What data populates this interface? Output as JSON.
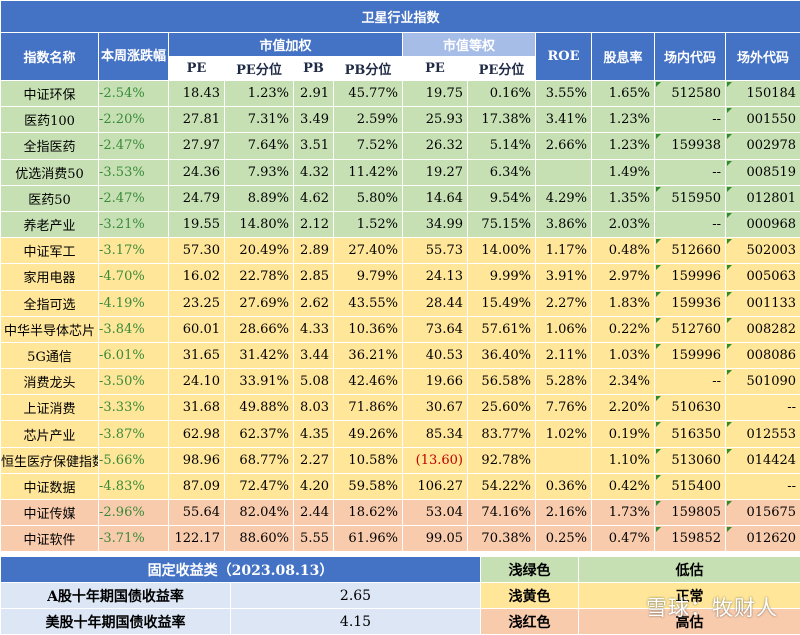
{
  "title": "卫星行业指数",
  "headers": {
    "name": "指数名称",
    "weekly": "本周涨跌幅",
    "cap_weighted": "市值加权",
    "equal_weighted": "市值等权",
    "roe": "ROE",
    "dividend": "股息率",
    "onsite": "场内代码",
    "offsite": "场外代码",
    "pe": "PE",
    "pe_pct": "PE分位",
    "pb": "PB",
    "pb_pct": "PB分位",
    "eq_pe": "PE",
    "eq_pe_pct": "PE分位"
  },
  "rows": [
    {
      "band": "g",
      "name": "中证环保",
      "chg": "-2.54%",
      "pe": "18.43",
      "pe_pct": "1.23%",
      "pb": "2.91",
      "pb_pct": "45.77%",
      "eq_pe": "19.75",
      "eq_pe_pct": "0.16%",
      "roe": "3.55%",
      "div": "1.65%",
      "on": "512580",
      "off": "150184"
    },
    {
      "band": "g",
      "name": "医药100",
      "chg": "-2.20%",
      "pe": "27.81",
      "pe_pct": "7.31%",
      "pb": "3.49",
      "pb_pct": "2.59%",
      "eq_pe": "25.93",
      "eq_pe_pct": "17.38%",
      "roe": "3.41%",
      "div": "1.23%",
      "on": "--",
      "off": "001550"
    },
    {
      "band": "g",
      "name": "全指医药",
      "chg": "-2.47%",
      "pe": "27.97",
      "pe_pct": "7.64%",
      "pb": "3.51",
      "pb_pct": "7.52%",
      "eq_pe": "26.32",
      "eq_pe_pct": "5.14%",
      "roe": "2.66%",
      "div": "1.23%",
      "on": "159938",
      "off": "002978"
    },
    {
      "band": "g",
      "name": "优选消费50",
      "chg": "-3.53%",
      "pe": "24.36",
      "pe_pct": "7.93%",
      "pb": "4.32",
      "pb_pct": "11.42%",
      "eq_pe": "19.27",
      "eq_pe_pct": "6.34%",
      "roe": "",
      "div": "1.49%",
      "on": "--",
      "off": "008519"
    },
    {
      "band": "g",
      "name": "医药50",
      "chg": "-2.47%",
      "pe": "24.79",
      "pe_pct": "8.89%",
      "pb": "4.62",
      "pb_pct": "5.80%",
      "eq_pe": "14.64",
      "eq_pe_pct": "9.54%",
      "roe": "4.29%",
      "div": "1.35%",
      "on": "515950",
      "off": "012801"
    },
    {
      "band": "g",
      "name": "养老产业",
      "chg": "-3.21%",
      "pe": "19.55",
      "pe_pct": "14.80%",
      "pb": "2.12",
      "pb_pct": "1.52%",
      "eq_pe": "34.99",
      "eq_pe_pct": "75.15%",
      "roe": "3.86%",
      "div": "2.03%",
      "on": "--",
      "off": "000968"
    },
    {
      "band": "y",
      "name": "中证军工",
      "chg": "-3.17%",
      "pe": "57.30",
      "pe_pct": "20.49%",
      "pb": "2.89",
      "pb_pct": "27.40%",
      "eq_pe": "55.73",
      "eq_pe_pct": "14.00%",
      "roe": "1.17%",
      "div": "0.48%",
      "on": "512660",
      "off": "502003"
    },
    {
      "band": "y",
      "name": "家用电器",
      "chg": "-4.70%",
      "pe": "16.02",
      "pe_pct": "22.78%",
      "pb": "2.85",
      "pb_pct": "9.79%",
      "eq_pe": "24.13",
      "eq_pe_pct": "9.99%",
      "roe": "3.91%",
      "div": "2.97%",
      "on": "159996",
      "off": "005063"
    },
    {
      "band": "y",
      "name": "全指可选",
      "chg": "-4.19%",
      "pe": "23.25",
      "pe_pct": "27.69%",
      "pb": "2.62",
      "pb_pct": "43.55%",
      "eq_pe": "28.44",
      "eq_pe_pct": "15.49%",
      "roe": "2.27%",
      "div": "1.83%",
      "on": "159936",
      "off": "001133"
    },
    {
      "band": "y",
      "name": "中华半导体芯片",
      "chg": "-3.84%",
      "pe": "60.01",
      "pe_pct": "28.66%",
      "pb": "4.33",
      "pb_pct": "10.36%",
      "eq_pe": "73.64",
      "eq_pe_pct": "57.61%",
      "roe": "1.06%",
      "div": "0.22%",
      "on": "512760",
      "off": "008282"
    },
    {
      "band": "y",
      "name": "5G通信",
      "chg": "-6.01%",
      "pe": "31.65",
      "pe_pct": "31.42%",
      "pb": "3.44",
      "pb_pct": "36.21%",
      "eq_pe": "40.53",
      "eq_pe_pct": "36.40%",
      "roe": "2.11%",
      "div": "1.03%",
      "on": "159996",
      "off": "008086"
    },
    {
      "band": "y",
      "name": "消费龙头",
      "chg": "-3.50%",
      "pe": "24.10",
      "pe_pct": "33.91%",
      "pb": "5.08",
      "pb_pct": "42.46%",
      "eq_pe": "19.66",
      "eq_pe_pct": "56.58%",
      "roe": "5.28%",
      "div": "2.34%",
      "on": "--",
      "off": "501090"
    },
    {
      "band": "y",
      "name": "上证消费",
      "chg": "-3.33%",
      "pe": "31.68",
      "pe_pct": "49.88%",
      "pb": "8.03",
      "pb_pct": "71.86%",
      "eq_pe": "30.67",
      "eq_pe_pct": "25.60%",
      "roe": "7.76%",
      "div": "2.20%",
      "on": "510630",
      "off": "--"
    },
    {
      "band": "y",
      "name": "芯片产业",
      "chg": "-3.87%",
      "pe": "62.98",
      "pe_pct": "62.37%",
      "pb": "4.35",
      "pb_pct": "49.26%",
      "eq_pe": "85.34",
      "eq_pe_pct": "83.77%",
      "roe": "1.02%",
      "div": "0.19%",
      "on": "516350",
      "off": "012553"
    },
    {
      "band": "y",
      "name": "恒生医疗保健指数",
      "chg": "-5.66%",
      "pe": "98.96",
      "pe_pct": "68.77%",
      "pb": "2.27",
      "pb_pct": "10.58%",
      "eq_pe": "(13.60)",
      "eq_pe_neg": true,
      "eq_pe_pct": "92.78%",
      "roe": "",
      "div": "1.10%",
      "on": "513060",
      "off": "014424"
    },
    {
      "band": "y",
      "name": "中证数据",
      "chg": "-4.83%",
      "pe": "87.09",
      "pe_pct": "72.47%",
      "pb": "4.20",
      "pb_pct": "59.58%",
      "eq_pe": "106.27",
      "eq_pe_pct": "54.22%",
      "roe": "0.36%",
      "div": "0.42%",
      "on": "515400",
      "off": "--"
    },
    {
      "band": "r",
      "name": "中证传媒",
      "chg": "-2.96%",
      "pe": "55.64",
      "pe_pct": "82.04%",
      "pb": "2.44",
      "pb_pct": "18.62%",
      "eq_pe": "53.04",
      "eq_pe_pct": "74.16%",
      "roe": "2.16%",
      "div": "1.73%",
      "on": "159805",
      "off": "015675"
    },
    {
      "band": "r",
      "name": "中证软件",
      "chg": "-3.71%",
      "pe": "122.17",
      "pe_pct": "88.60%",
      "pb": "5.55",
      "pb_pct": "61.96%",
      "eq_pe": "99.05",
      "eq_pe_pct": "70.38%",
      "roe": "0.25%",
      "div": "0.47%",
      "on": "159852",
      "off": "012620"
    }
  ],
  "fixed_income": {
    "title": "固定收益类（2023.08.13）",
    "a_label": "A股十年期国债收益率",
    "a_value": "2.65",
    "us_label": "美股十年期国债收益率",
    "us_value": "4.15"
  },
  "legend": [
    {
      "color_name": "浅绿色",
      "meaning": "低估",
      "hex": "#c6e0b4"
    },
    {
      "color_name": "浅黄色",
      "meaning": "正常",
      "hex": "#ffe699"
    },
    {
      "color_name": "浅红色",
      "meaning": "高估",
      "hex": "#f8cbad"
    }
  ],
  "watermark": "雪球：牧财人"
}
